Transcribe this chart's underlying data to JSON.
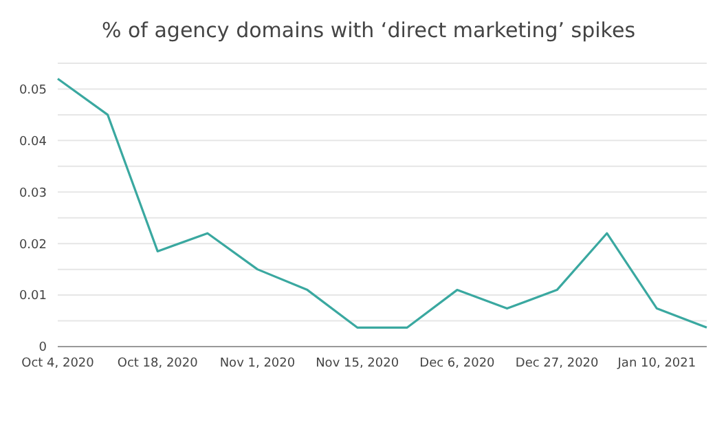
{
  "chart_data": {
    "type": "line",
    "title": "% of agency domains with ‘direct marketing’ spikes",
    "categories": [
      "Oct 4, 2020",
      null,
      "Oct 18, 2020",
      null,
      "Nov 1, 2020",
      null,
      "Nov 15, 2020",
      null,
      "Dec 6, 2020",
      null,
      "Dec 27, 2020",
      null,
      "Jan 10, 2021",
      null
    ],
    "series": [
      {
        "color": "#3aa8a0",
        "values": [
          0.052,
          0.045,
          0.0185,
          0.022,
          0.015,
          0.011,
          0.0037,
          0.0037,
          0.011,
          0.0074,
          0.011,
          0.022,
          0.0074,
          0.0037
        ]
      }
    ],
    "ylim": [
      0,
      0.055
    ],
    "yticks": [
      0,
      {
        "value": 0.005,
        "label": null
      },
      0.01,
      {
        "value": 0.015,
        "label": null
      },
      0.02,
      {
        "value": 0.025,
        "label": null
      },
      0.03,
      {
        "value": 0.035,
        "label": null
      },
      0.04,
      {
        "value": 0.045,
        "label": null
      },
      0.05,
      {
        "value": 0.055,
        "label": null
      }
    ],
    "grid": "y",
    "marker": "none",
    "line_style": "solid"
  }
}
